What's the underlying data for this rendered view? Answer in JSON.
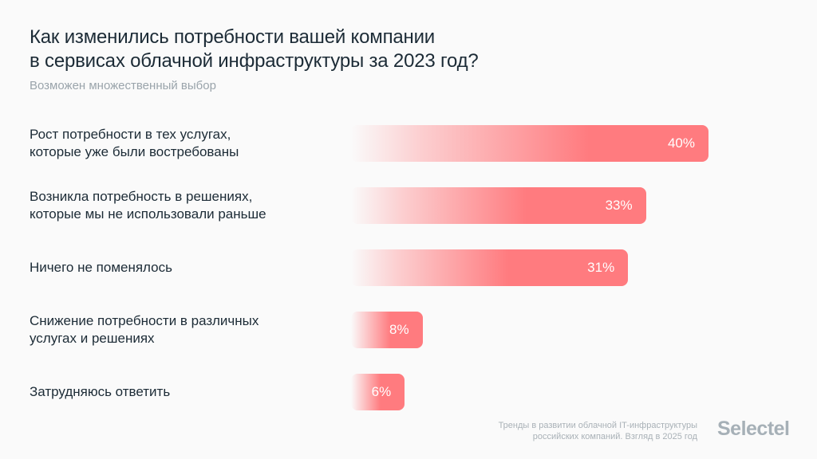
{
  "chart_data": {
    "type": "bar",
    "orientation": "horizontal",
    "title": "Как изменились потребности вашей компании в сервисах облачной инфраструктуры за 2023 год?",
    "title_lines": [
      "Как изменились потребности вашей компании",
      "в сервисах облачной инфраструктуры за 2023 год?"
    ],
    "subtitle": "Возможен множественный выбор",
    "categories": [
      [
        "Рост потребности в тех услугах,",
        "которые уже были востребованы"
      ],
      [
        "Возникла потребность в решениях,",
        "которые мы не использовали раньше"
      ],
      [
        "Ничего не поменялось"
      ],
      [
        "Снижение потребности в различных",
        "услугах и решениях"
      ],
      [
        "Затрудняюсь ответить"
      ]
    ],
    "values": [
      40,
      33,
      31,
      8,
      6
    ],
    "labels": [
      "40%",
      "33%",
      "31%",
      "8%",
      "6%"
    ],
    "unit": "%",
    "xlim": [
      0,
      40
    ],
    "grid": false,
    "bar_color": "#ff7b7f"
  },
  "footer": {
    "source_line1": "Тренды в развитии облачной IT-инфраструктуры",
    "source_line2": "российских компаний. Взгляд в 2025 год",
    "logo": "Selectel"
  }
}
